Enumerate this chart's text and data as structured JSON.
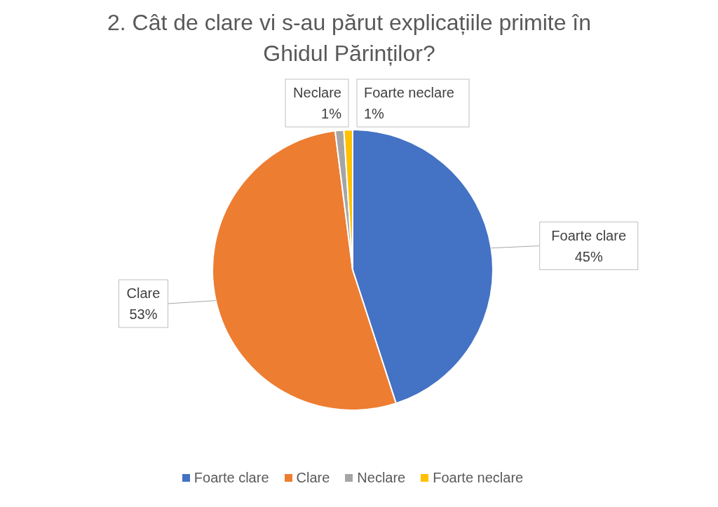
{
  "chart_data": {
    "type": "pie",
    "title": "2. Cât de clare vi s-au părut explicațiile primite în Ghidul Părinților?",
    "categories": [
      "Foarte clare",
      "Clare",
      "Neclare",
      "Foarte neclare"
    ],
    "values": [
      45,
      53,
      1,
      1
    ],
    "colors": [
      "#4472c4",
      "#ed7d31",
      "#a5a5a5",
      "#ffc000"
    ],
    "value_labels": [
      "45%",
      "53%",
      "1%",
      "1%"
    ],
    "legend": "bottom"
  }
}
